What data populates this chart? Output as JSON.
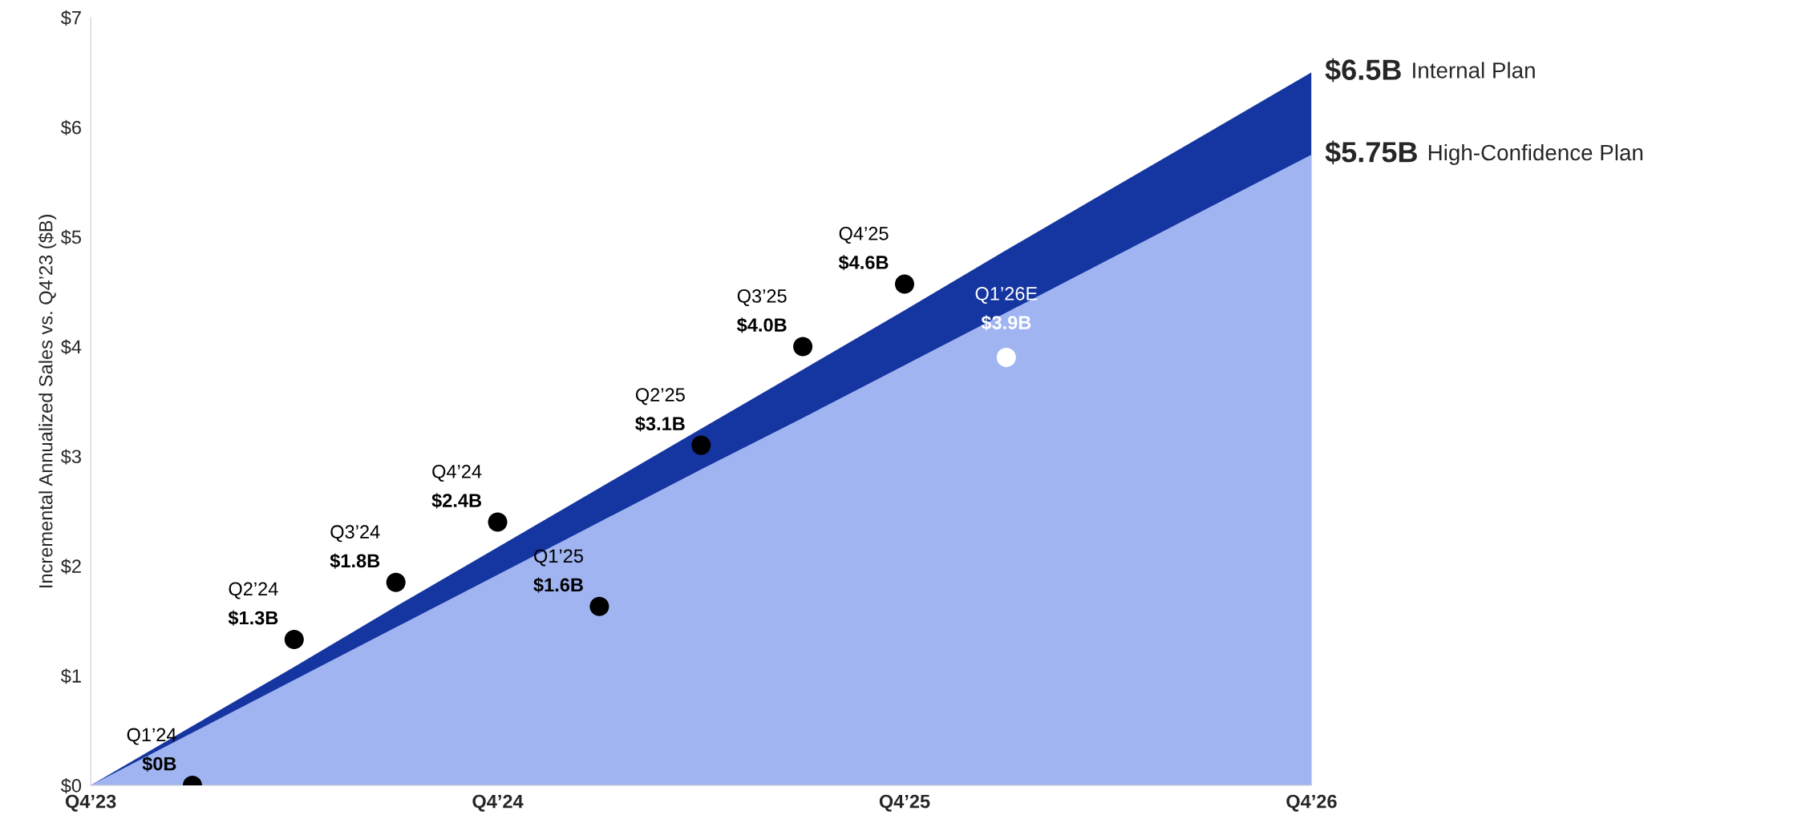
{
  "chart_data": {
    "type": "area",
    "ylabel": "Incremental Annualized Sales vs. Q4’23 ($B)",
    "categories": [
      "Q4’23",
      null,
      null,
      null,
      "Q4’24",
      null,
      null,
      null,
      "Q4’25",
      null,
      null,
      null,
      "Q4’26"
    ],
    "ylim": [
      0,
      7
    ],
    "yticks": [
      {
        "value": 0,
        "label": "$0"
      },
      {
        "value": 1,
        "label": "$1"
      },
      {
        "value": 2,
        "label": "$2"
      },
      {
        "value": 3,
        "label": "$3"
      },
      {
        "value": 4,
        "label": "$4"
      },
      {
        "value": 5,
        "label": "$5"
      },
      {
        "value": 6,
        "label": "$6"
      },
      {
        "value": 7,
        "label": "$7"
      }
    ],
    "grid": false,
    "legend": false,
    "series": [
      {
        "name": "Internal Plan",
        "color": "#1535a0",
        "values": [
          0,
          0.54,
          1.08,
          1.63,
          2.17,
          2.71,
          3.25,
          3.79,
          4.33,
          4.88,
          5.42,
          5.96,
          6.5
        ],
        "value_labels": [
          null,
          null,
          null,
          null,
          null,
          null,
          null,
          null,
          null,
          null,
          null,
          null,
          "$6.5B"
        ]
      },
      {
        "name": "High-Confidence Plan",
        "color": "#a0b4f2",
        "values": [
          0,
          0.48,
          0.96,
          1.44,
          1.92,
          2.4,
          2.88,
          3.35,
          3.83,
          4.31,
          4.79,
          5.27,
          5.75
        ],
        "value_labels": [
          null,
          null,
          null,
          null,
          null,
          null,
          null,
          null,
          null,
          null,
          null,
          null,
          "$5.75B"
        ]
      },
      {
        "type": "scatter",
        "marker": "circle",
        "values": [
          null,
          0,
          1.33,
          1.85,
          2.4,
          1.63,
          3.1,
          4.0,
          4.57,
          3.9,
          null,
          null,
          null
        ],
        "colors": [
          null,
          "#000000",
          "#000000",
          "#000000",
          "#000000",
          "#000000",
          "#000000",
          "#000000",
          "#000000",
          "#ffffff",
          null,
          null,
          null
        ],
        "value_labels": [
          null,
          "$0B",
          "$1.3B",
          "$1.8B",
          "$2.4B",
          "$1.6B",
          "$3.1B",
          "$4.0B",
          "$4.6B",
          "$3.9B",
          null,
          null,
          null
        ]
      }
    ],
    "annotations": [
      "Q1’24",
      "Q2’24",
      "Q3’24",
      "Q4’24",
      "Q1’25",
      "Q2’25",
      "Q3’25",
      "Q4’25",
      "Q1’26E"
    ]
  }
}
